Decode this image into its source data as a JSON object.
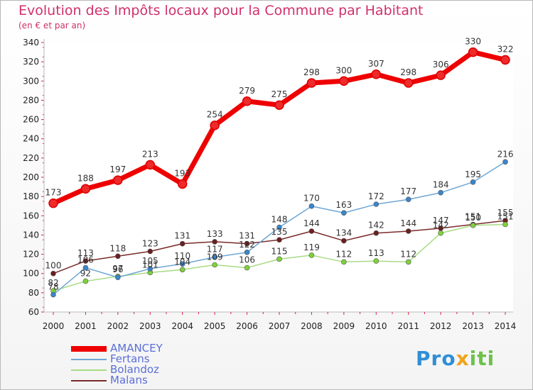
{
  "title": "Evolution des Impôts locaux pour la Commune par Habitant",
  "subtitle": "(en € et par an)",
  "logo": {
    "p": "Pro",
    "x": "x",
    "i": "iti",
    "word": "Proxiti"
  },
  "chart_data": {
    "type": "line",
    "title": "Evolution des Impôts locaux pour la Commune par Habitant",
    "ylabel": "(en € et par an)",
    "xlabel": "",
    "ylim": [
      60,
      340
    ],
    "yticks": [
      60,
      80,
      100,
      120,
      140,
      160,
      180,
      200,
      220,
      240,
      260,
      280,
      300,
      320,
      340
    ],
    "categories": [
      "2000",
      "2001",
      "2002",
      "2003",
      "2004",
      "2005",
      "2006",
      "2007",
      "2008",
      "2009",
      "2010",
      "2011",
      "2012",
      "2013",
      "2014"
    ],
    "legend_position": "bottom-left",
    "series": [
      {
        "name": "AMANCEY",
        "color": "#ee0000",
        "marker": "#ee2a2a",
        "labels": [
          "173",
          "188",
          "197",
          "213",
          "193",
          "254",
          "279",
          "275",
          "298",
          "300",
          "307",
          "298",
          "306",
          "330",
          "322"
        ],
        "values": [
          173,
          188,
          197,
          213,
          193,
          254,
          279,
          275,
          298,
          300,
          307,
          298,
          306,
          330,
          322
        ]
      },
      {
        "name": "Fertans",
        "color": "#6ea7d6",
        "marker": "#3a86cc",
        "labels": [
          "78",
          "106",
          "96",
          "105",
          "110",
          "117",
          "122",
          "148",
          "170",
          "163",
          "172",
          "177",
          "184",
          "195",
          "216"
        ],
        "values": [
          78,
          106,
          96,
          105,
          110,
          117,
          122,
          148,
          170,
          163,
          172,
          177,
          184,
          195,
          216
        ]
      },
      {
        "name": "Bolandoz",
        "color": "#a8dc84",
        "marker": "#7fd13b",
        "labels": [
          "82",
          "92",
          "97",
          "101",
          "104",
          "109",
          "106",
          "115",
          "119",
          "112",
          "113",
          "112",
          "142",
          "150",
          "151"
        ],
        "values": [
          82,
          92,
          97,
          101,
          104,
          109,
          106,
          115,
          119,
          112,
          113,
          112,
          142,
          150,
          151
        ]
      },
      {
        "name": "Malans",
        "color": "#7a2a2a",
        "marker": "#6b1f1f",
        "labels": [
          "100",
          "113",
          "118",
          "123",
          "131",
          "133",
          "131",
          "135",
          "144",
          "134",
          "142",
          "144",
          "147",
          "151",
          "155"
        ],
        "values": [
          100,
          113,
          118,
          123,
          131,
          133,
          131,
          135,
          144,
          134,
          142,
          144,
          147,
          151,
          155
        ]
      }
    ]
  }
}
